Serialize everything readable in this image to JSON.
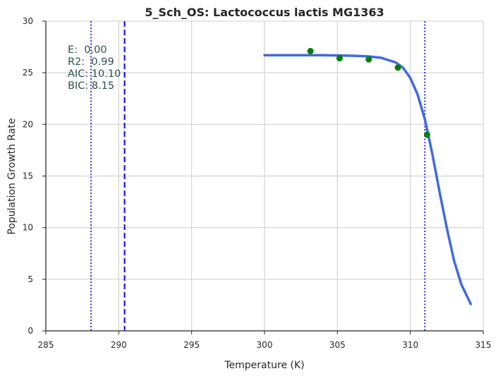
{
  "chart_data": {
    "type": "scatter",
    "title": "5_Sch_OS: Lactococcus lactis MG1363",
    "xlabel": "Temperature (K)",
    "ylabel": "Population Growth Rate",
    "xlim": [
      285,
      315
    ],
    "ylim": [
      0,
      30
    ],
    "xticks": [
      285,
      290,
      295,
      300,
      305,
      310,
      315
    ],
    "yticks": [
      0,
      5,
      10,
      15,
      20,
      25,
      30
    ],
    "grid": true,
    "points": {
      "x": [
        303.15,
        305.15,
        307.15,
        309.15,
        311.15
      ],
      "y": [
        27.1,
        26.4,
        26.3,
        25.5,
        19.0
      ],
      "color": "#008000"
    },
    "fit_curve": {
      "x": [
        300.0,
        302.0,
        304.0,
        306.0,
        307.0,
        308.0,
        309.0,
        309.5,
        310.0,
        310.5,
        311.0,
        311.5,
        312.0,
        312.5,
        313.0,
        313.5,
        314.15
      ],
      "y": [
        26.7,
        26.7,
        26.7,
        26.65,
        26.6,
        26.45,
        26.0,
        25.5,
        24.5,
        22.9,
        20.5,
        17.2,
        13.5,
        10.0,
        6.8,
        4.5,
        2.6
      ],
      "color": "#4169e1"
    },
    "vlines": [
      {
        "x": 288.1,
        "style": "dotted",
        "color": "#0000ff"
      },
      {
        "x": 290.4,
        "style": "dashed",
        "color": "#0000ff"
      },
      {
        "x": 311.0,
        "style": "dotted",
        "color": "#0000ff"
      }
    ],
    "annotation": {
      "lines": [
        "E:  0.00",
        "R2:  0.99",
        "AIC: 10.10",
        "BIC: 8.15"
      ],
      "placement": "top-left"
    }
  }
}
